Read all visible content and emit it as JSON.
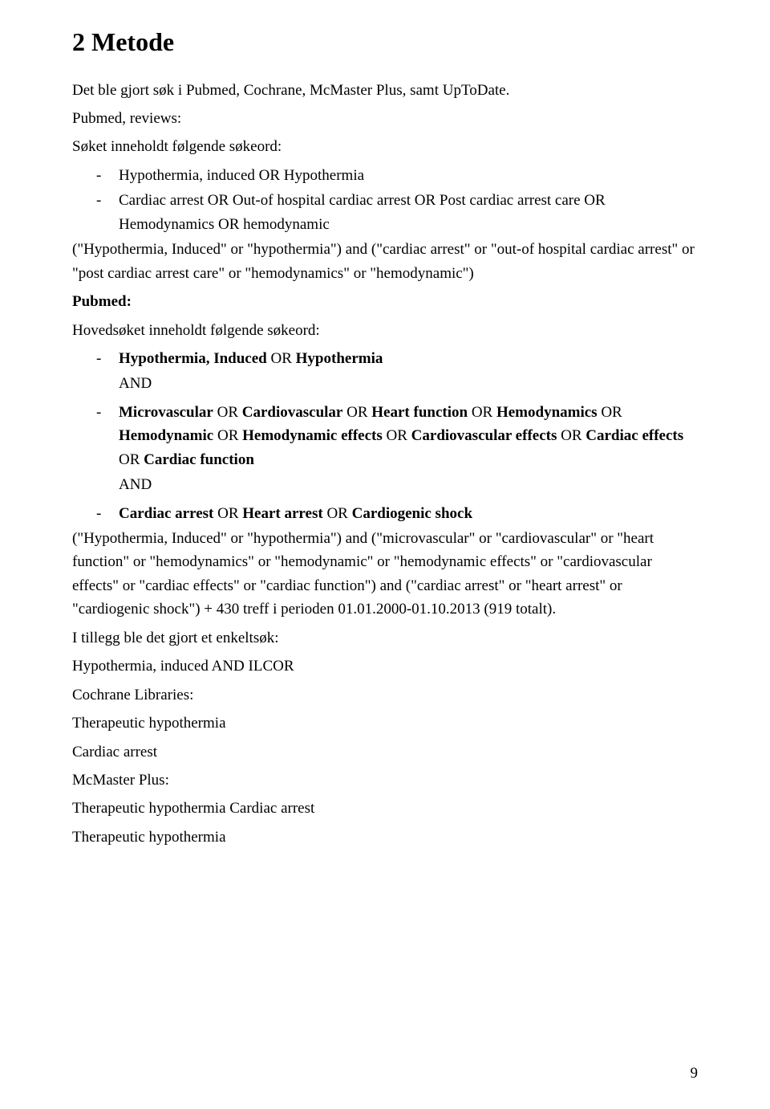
{
  "heading": "2 Metode",
  "intro": "Det ble gjort søk i Pubmed, Cochrane, McMaster Plus, samt UpToDate.",
  "pubmed_reviews_label": "Pubmed, reviews",
  "pubmed_reviews_subtitle": "Søket inneholdt følgende søkeord:",
  "pubmed_reviews_items": [
    "Hypothermia, induced OR Hypothermia",
    "Cardiac arrest OR Out-of hospital cardiac arrest OR Post cardiac arrest care OR Hemodynamics OR hemodynamic"
  ],
  "pubmed_reviews_query": "(\"Hypothermia, Induced\" or \"hypothermia\") and (\"cardiac arrest\" or \"out-of hospital cardiac arrest\" or \"post cardiac arrest care\" or \"hemodynamics\" or \"hemodynamic\")",
  "pubmed_label": "Pubmed:",
  "pubmed_subtitle": "Hovedsøket inneholdt følgende søkeord:",
  "pubmed_item1_bold": "Hypothermia, Induced",
  "pubmed_item1_rest": " OR ",
  "pubmed_item1_bold2": "Hypothermia",
  "pubmed_and1": "AND",
  "pubmed_item2_full": "Microvascular OR Cardiovascular OR Heart function OR Hemodynamics OR Hemodynamic OR Hemodynamic effects OR Cardiovascular effects OR Cardiac effects OR Cardiac function",
  "pubmed_and2": "AND",
  "pubmed_item3_full": "Cardiac arrest OR Heart arrest OR Cardiogenic shock",
  "pubmed_query_line1": "(\"Hypothermia, Induced\" or \"hypothermia\") and (\"microvascular\" or \"cardiovascular\" or \"heart function\" or \"hemodynamics\" or \"hemodynamic\" or \"hemodynamic effects\" or \"cardiovascular effects\" or \"cardiac effects\" or \"cardiac function\") and (\"cardiac arrest\" or \"heart arrest\" or \"cardiogenic shock\") + 430 treff i perioden 01.01.2000-01.10.2013 (919 totalt).",
  "additional_line1": "I tillegg ble det gjort et enkeltsøk:",
  "additional_line2": "Hypothermia, induced AND ILCOR",
  "cochrane_label": "Cochrane Libraries",
  "cochrane_line1": "Therapeutic hypothermia",
  "cochrane_line2": "Cardiac arrest",
  "mcmaster_label": "McMaster Plus",
  "mcmaster_line1": "Therapeutic hypothermia Cardiac arrest",
  "mcmaster_line2": "Therapeutic hypothermia",
  "page_number": "9"
}
